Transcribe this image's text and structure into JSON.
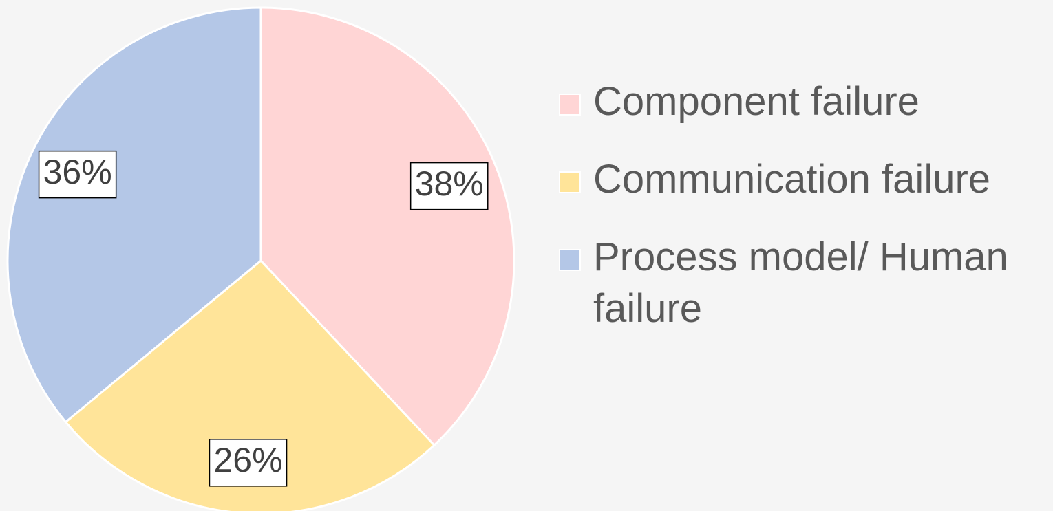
{
  "chart_data": {
    "type": "pie",
    "categories": [
      "Component failure",
      "Communication failure",
      "Process model/ Human failure"
    ],
    "values": [
      38,
      26,
      36
    ],
    "value_labels": [
      "38%",
      "26%",
      "36%"
    ],
    "colors": [
      "#ffd5d5",
      "#ffe499",
      "#b4c7e7"
    ],
    "legend": "right"
  }
}
